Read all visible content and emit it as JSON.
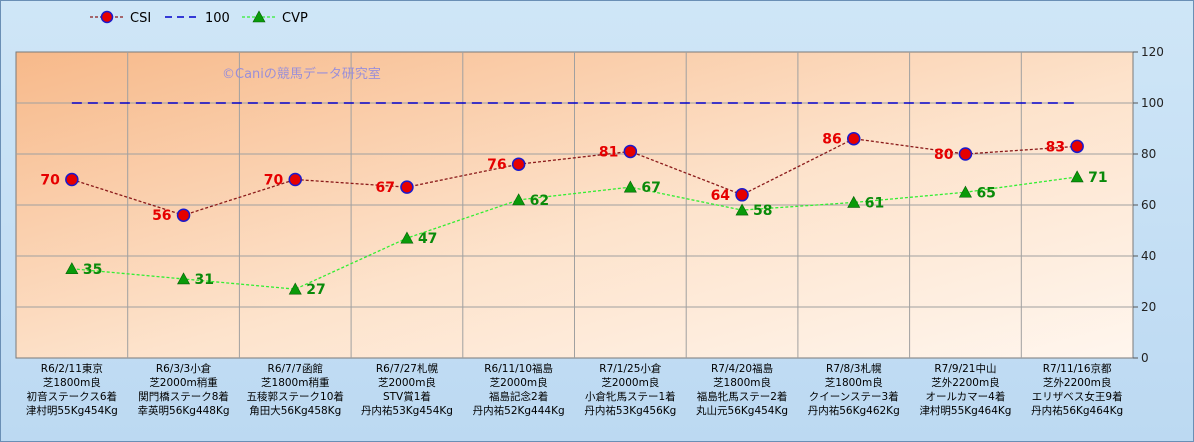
{
  "chart_data": {
    "type": "line",
    "watermark": "©Caniの競馬データ研究室",
    "ylim": [
      0,
      120
    ],
    "yticks": [
      "0",
      "20",
      "40",
      "60",
      "80",
      "100",
      "120"
    ],
    "categories": [
      [
        "R6/2/11東京",
        "芝1800m良",
        "初音ステークス6着",
        "津村明55Kg454Kg"
      ],
      [
        "R6/3/3小倉",
        "芝2000m稍重",
        "関門橋ステーク8着",
        "幸英明56Kg448Kg"
      ],
      [
        "R6/7/7函館",
        "芝1800m稍重",
        "五稜郭ステーク10着",
        "角田大56Kg458Kg"
      ],
      [
        "R6/7/27札幌",
        "芝2000m良",
        "STV賞1着",
        "丹内祐53Kg454Kg"
      ],
      [
        "R6/11/10福島",
        "芝2000m良",
        "福島記念2着",
        "丹内祐52Kg444Kg"
      ],
      [
        "R7/1/25小倉",
        "芝2000m良",
        "小倉牝馬ステー1着",
        "丹内祐53Kg456Kg"
      ],
      [
        "R7/4/20福島",
        "芝1800m良",
        "福島牝馬ステー2着",
        "丸山元56Kg454Kg"
      ],
      [
        "R7/8/3札幌",
        "芝1800m良",
        "クイーンステー3着",
        "丹内祐56Kg462Kg"
      ],
      [
        "R7/9/21中山",
        "芝外2200m良",
        "オールカマー4着",
        "津村明55Kg464Kg"
      ],
      [
        "R7/11/16京都",
        "芝外2200m良",
        "エリザベス女王9着",
        "丹内祐56Kg464Kg"
      ]
    ],
    "series": [
      {
        "name": "CSI",
        "values": [
          70,
          56,
          70,
          67,
          76,
          81,
          64,
          86,
          80,
          83
        ],
        "color": "#8b1a1a",
        "marker_color": "#e60000"
      },
      {
        "name": "100",
        "values": [
          100,
          100,
          100,
          100,
          100,
          100,
          100,
          100,
          100,
          100
        ],
        "color": "#0000cc"
      },
      {
        "name": "CVP",
        "values": [
          35,
          31,
          27,
          47,
          62,
          67,
          58,
          61,
          65,
          71
        ],
        "color": "#33ee33",
        "marker_color": "#0a9a0a"
      }
    ],
    "legend": "top-left",
    "grid": true
  }
}
